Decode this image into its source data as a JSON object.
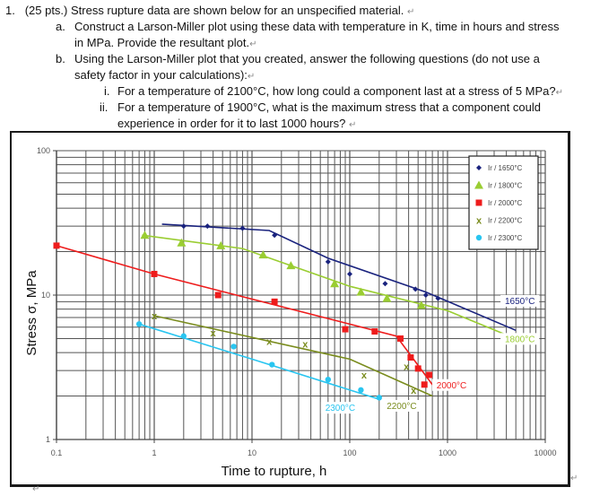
{
  "question": {
    "number": "1.",
    "header": "(25 pts.) Stress rupture data are shown below for an unspecified material.",
    "parts": [
      {
        "label": "a.",
        "lines": [
          "Construct a Larson-Miller plot using these data with temperature in K, time in hours and stress",
          "in MPa.  Provide the resultant plot."
        ]
      },
      {
        "label": "b.",
        "lines": [
          "Using the Larson-Miller plot that you created, answer the following questions (do not use a",
          "safety factor in your calculations):"
        ]
      }
    ],
    "subparts": [
      {
        "label": "i.",
        "lines": [
          "For a temperature of 2100°C, how long could a component last at a stress of 5 MPa?"
        ]
      },
      {
        "label": "ii.",
        "lines": [
          "For a temperature of 1900°C, what is the maximum stress that a component could",
          "experience in order for it to last 1000 hours?"
        ]
      }
    ],
    "paragraph_mark": "↵"
  },
  "chart_data": {
    "type": "scatter",
    "title": "",
    "xlabel": "Time to rupture, h",
    "ylabel": "Stress σ, MPa",
    "xscale": "log",
    "yscale": "log",
    "xlim": [
      0.1,
      10000
    ],
    "ylim": [
      1,
      100
    ],
    "x_ticks": [
      "0.1",
      "1",
      "10",
      "100",
      "1000",
      "10000"
    ],
    "y_ticks": [
      "1",
      "10",
      "100"
    ],
    "grid": true,
    "legend_position": "upper right",
    "series": [
      {
        "name": "Ir / 1650°C",
        "label": "1650°C",
        "color": "#1a237e",
        "marker": "diamond",
        "points": [
          [
            2,
            30
          ],
          [
            3.5,
            30
          ],
          [
            8,
            29
          ],
          [
            17,
            26
          ],
          [
            60,
            17
          ],
          [
            100,
            14
          ],
          [
            230,
            12
          ],
          [
            470,
            11
          ],
          [
            600,
            10
          ],
          [
            800,
            9.5
          ]
        ],
        "fit": [
          [
            1.2,
            31
          ],
          [
            15,
            28
          ],
          [
            60,
            18
          ],
          [
            600,
            10.5
          ],
          [
            5000,
            5.7
          ]
        ]
      },
      {
        "name": "Ir / 1800°C",
        "label": "1800°C",
        "color": "#9acd32",
        "marker": "triangle",
        "points": [
          [
            0.8,
            26
          ],
          [
            1.9,
            23
          ],
          [
            4.8,
            22
          ],
          [
            13,
            19
          ],
          [
            25,
            16
          ],
          [
            70,
            12
          ],
          [
            130,
            10.5
          ],
          [
            240,
            9.5
          ],
          [
            540,
            8.5
          ]
        ],
        "fit": [
          [
            0.75,
            26
          ],
          [
            8,
            21
          ],
          [
            100,
            11.5
          ],
          [
            1000,
            7.8
          ],
          [
            4000,
            5.3
          ]
        ]
      },
      {
        "name": "Ir / 2000°C",
        "label": "2000°C",
        "color": "#ee1c1c",
        "marker": "square",
        "points": [
          [
            0.1,
            22
          ],
          [
            1,
            14
          ],
          [
            4.5,
            10
          ],
          [
            17,
            9
          ],
          [
            90,
            5.8
          ],
          [
            180,
            5.6
          ],
          [
            330,
            5
          ],
          [
            420,
            3.7
          ],
          [
            500,
            3.1
          ],
          [
            580,
            2.4
          ],
          [
            650,
            2.8
          ]
        ],
        "fit": [
          [
            0.1,
            22
          ],
          [
            1,
            14
          ],
          [
            300,
            5.2
          ],
          [
            770,
            2.2
          ]
        ]
      },
      {
        "name": "Ir / 2200°C",
        "label": "2200°C",
        "color": "#7a8c1e",
        "marker": "x",
        "points": [
          [
            1,
            7.2
          ],
          [
            4,
            5.5
          ],
          [
            15,
            4.8
          ],
          [
            35,
            4.6
          ],
          [
            140,
            2.8
          ],
          [
            380,
            3.2
          ],
          [
            450,
            2.2
          ]
        ],
        "fit": [
          [
            1,
            7.2
          ],
          [
            100,
            3.6
          ],
          [
            700,
            2.0
          ]
        ]
      },
      {
        "name": "Ir / 2300°C",
        "label": "2300°C",
        "color": "#29c5f0",
        "marker": "circle",
        "points": [
          [
            0.7,
            6.3
          ],
          [
            2,
            5.2
          ],
          [
            6.5,
            4.4
          ],
          [
            16,
            3.3
          ],
          [
            60,
            2.6
          ],
          [
            130,
            2.2
          ],
          [
            200,
            1.95
          ]
        ],
        "fit": [
          [
            0.7,
            6.3
          ],
          [
            10,
            3.6
          ],
          [
            200,
            1.9
          ]
        ]
      }
    ],
    "curve_labels": [
      {
        "text": "1650°C",
        "x": 5500,
        "y": 8.8,
        "color": "#1a237e"
      },
      {
        "text": "1800°C",
        "x": 5500,
        "y": 4.8,
        "color": "#9acd32"
      },
      {
        "text": "2000°C",
        "x": 1100,
        "y": 2.3,
        "color": "#ee1c1c"
      },
      {
        "text": "2200°C",
        "x": 340,
        "y": 1.65,
        "color": "#7a8c1e"
      },
      {
        "text": "2300°C",
        "x": 80,
        "y": 1.6,
        "color": "#29c5f0"
      }
    ]
  }
}
